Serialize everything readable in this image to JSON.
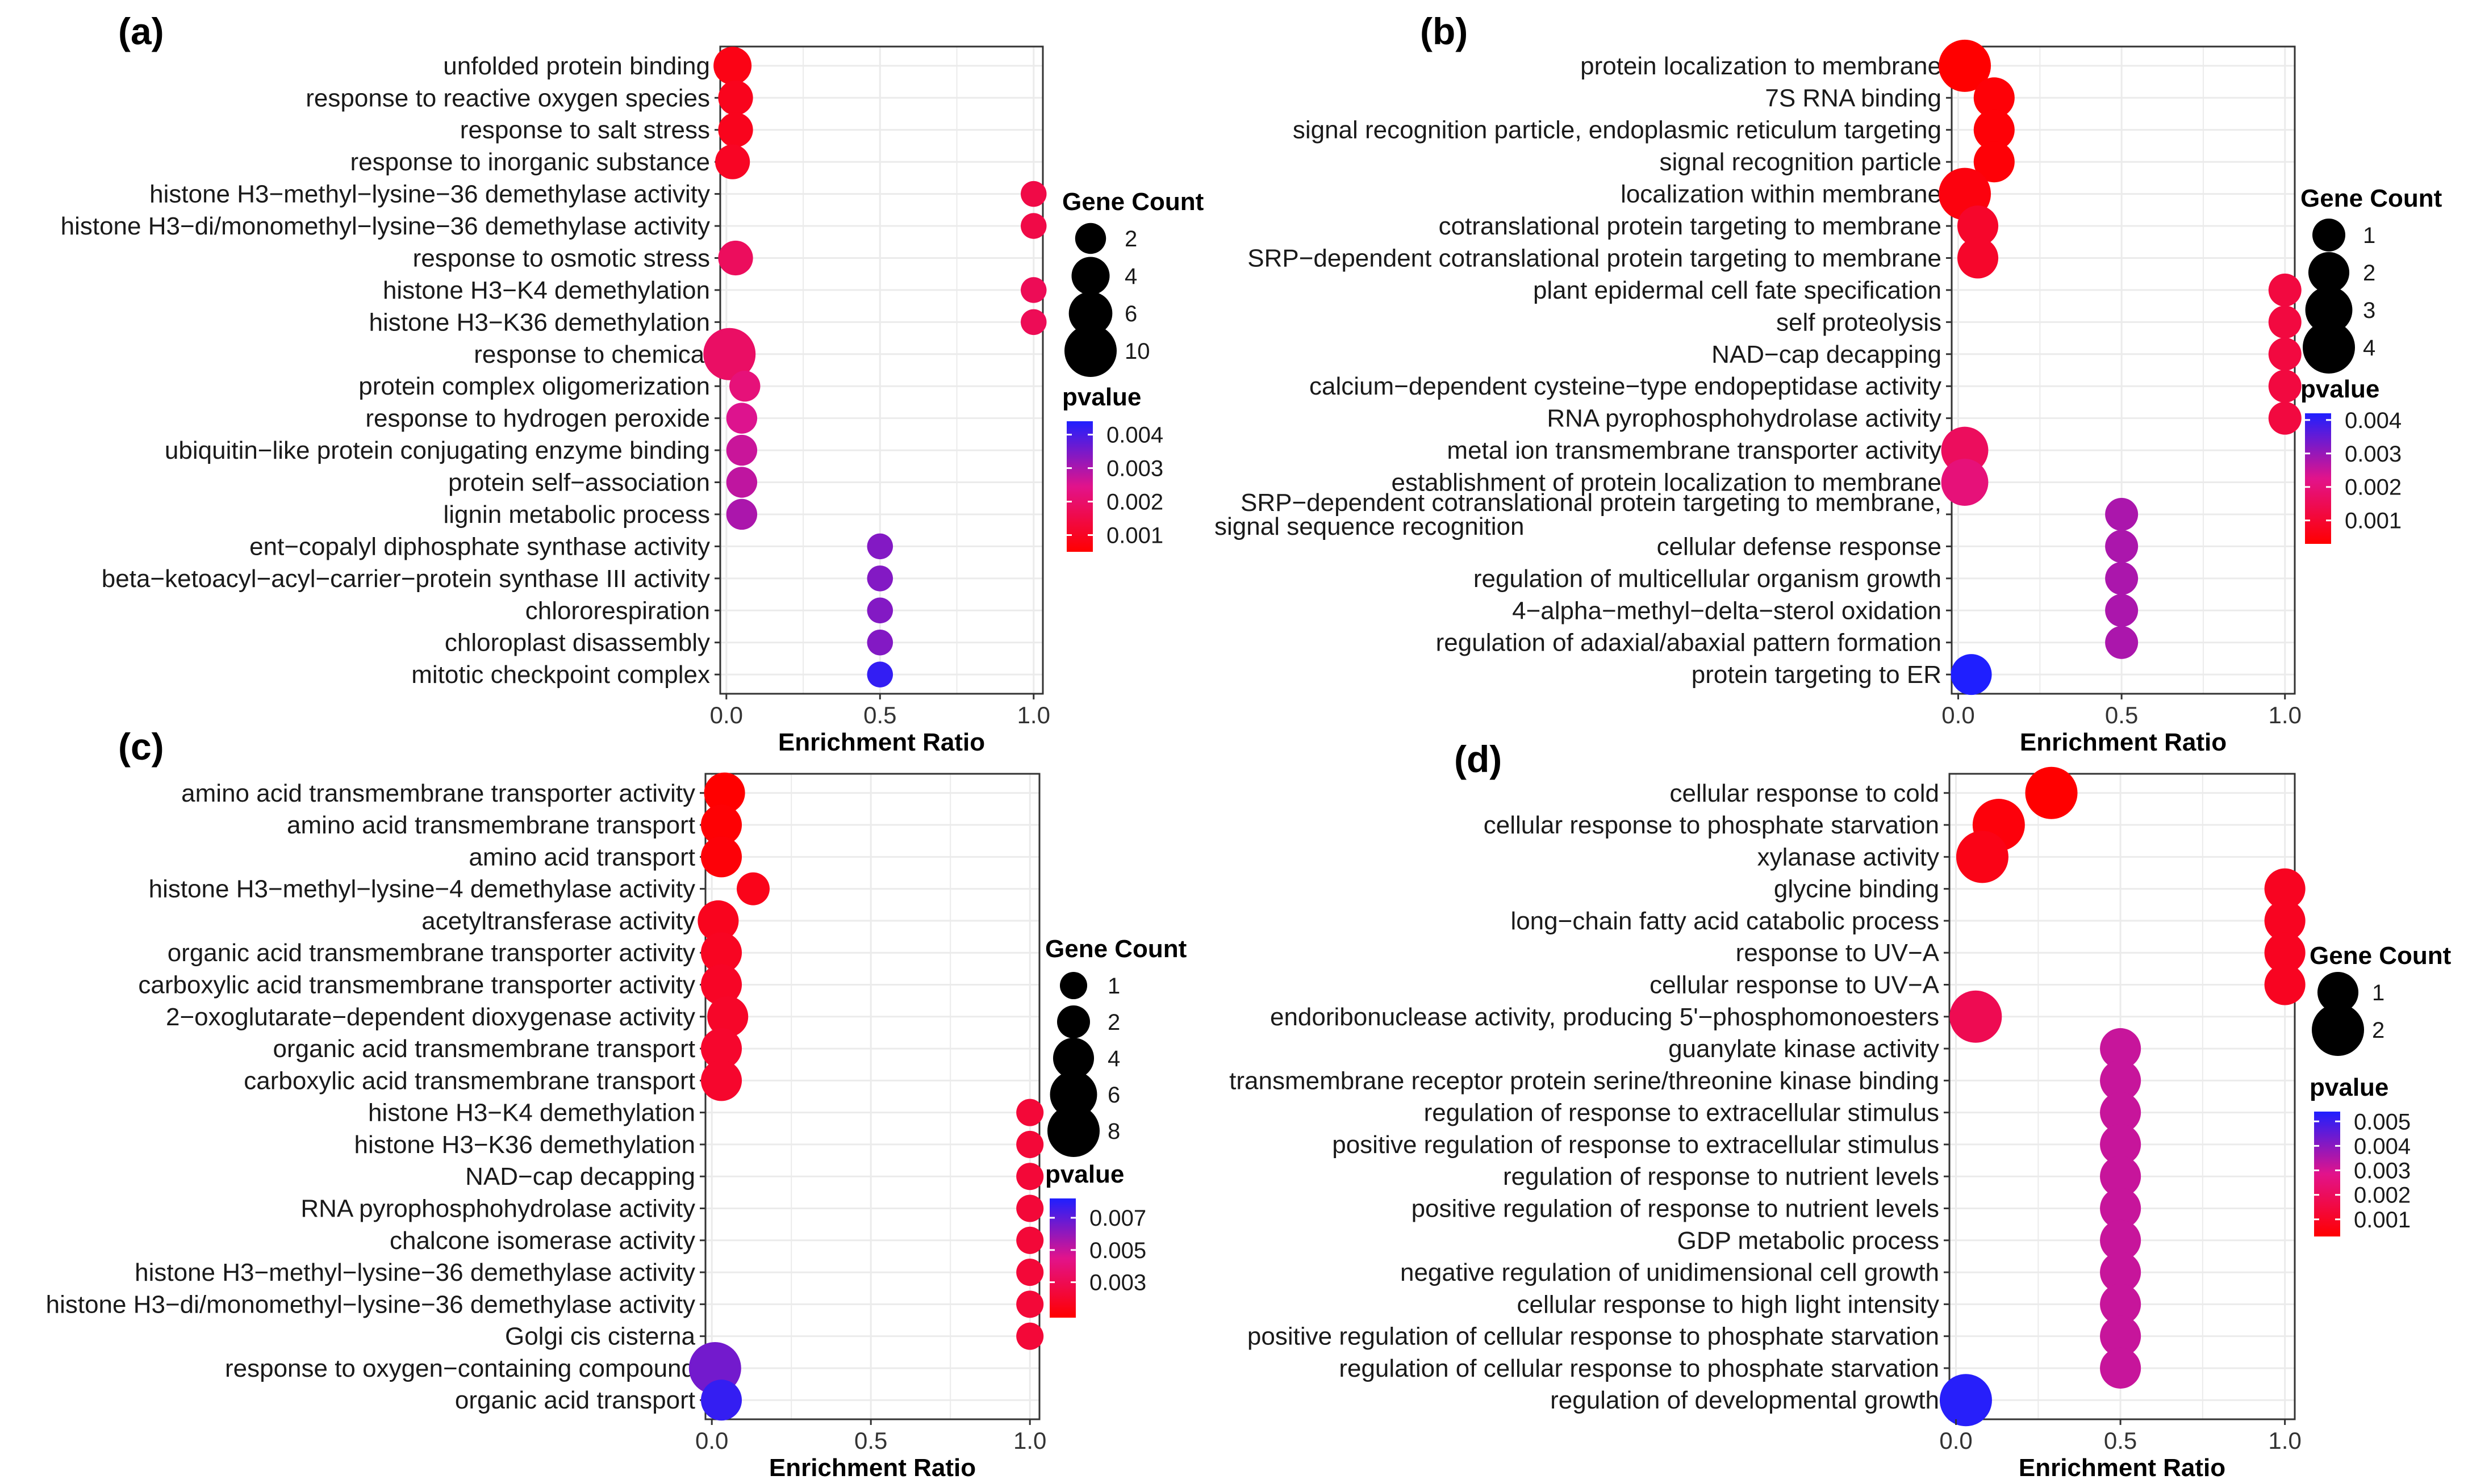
{
  "colors": {
    "low": "#ff0000",
    "mid": "#e2138b",
    "high": "#1f1fff",
    "grid": "#ebebeb",
    "frame": "#333333"
  },
  "legend_titles": {
    "size": "Gene Count",
    "color": "pvalue"
  },
  "chart_data": [
    {
      "type": "scatter",
      "panel": "(a)",
      "xlabel": "Enrichment Ratio",
      "xticks": [
        "0.0",
        "0.5",
        "1.0"
      ],
      "xlim": [
        -0.02,
        1.03
      ],
      "terms": [
        {
          "term": "unfolded protein binding",
          "ratio": 0.02,
          "count": 4,
          "pvalue": 0.0008
        },
        {
          "term": "response to reactive oxygen species",
          "ratio": 0.03,
          "count": 3,
          "pvalue": 0.0009
        },
        {
          "term": "response to salt stress",
          "ratio": 0.03,
          "count": 3,
          "pvalue": 0.0009
        },
        {
          "term": "response to inorganic substance",
          "ratio": 0.02,
          "count": 3,
          "pvalue": 0.001
        },
        {
          "term": "histone H3−methyl−lysine−36 demethylase activity",
          "ratio": 1.0,
          "count": 1,
          "pvalue": 0.0015
        },
        {
          "term": "histone H3−di/monomethyl−lysine−36 demethylase activity",
          "ratio": 1.0,
          "count": 1,
          "pvalue": 0.0015
        },
        {
          "term": "response to osmotic stress",
          "ratio": 0.03,
          "count": 3,
          "pvalue": 0.0018
        },
        {
          "term": "histone H3−K4 demethylation",
          "ratio": 1.0,
          "count": 1,
          "pvalue": 0.0017
        },
        {
          "term": "histone H3−K36 demethylation",
          "ratio": 1.0,
          "count": 1,
          "pvalue": 0.0017
        },
        {
          "term": "response to chemical",
          "ratio": 0.01,
          "count": 10,
          "pvalue": 0.0019
        },
        {
          "term": "protein complex oligomerization",
          "ratio": 0.06,
          "count": 2,
          "pvalue": 0.0022
        },
        {
          "term": "response to hydrogen peroxide",
          "ratio": 0.05,
          "count": 2,
          "pvalue": 0.0025
        },
        {
          "term": "ubiquitin−like protein conjugating enzyme binding",
          "ratio": 0.05,
          "count": 2,
          "pvalue": 0.0027
        },
        {
          "term": "protein self−association",
          "ratio": 0.05,
          "count": 2,
          "pvalue": 0.0028
        },
        {
          "term": "lignin metabolic process",
          "ratio": 0.05,
          "count": 2,
          "pvalue": 0.003
        },
        {
          "term": "ent−copalyl diphosphate synthase activity",
          "ratio": 0.5,
          "count": 1,
          "pvalue": 0.0034
        },
        {
          "term": "beta−ketoacyl−acyl−carrier−protein synthase III activity",
          "ratio": 0.5,
          "count": 1,
          "pvalue": 0.0034
        },
        {
          "term": "chlororespiration",
          "ratio": 0.5,
          "count": 1,
          "pvalue": 0.0034
        },
        {
          "term": "chloroplast disassembly",
          "ratio": 0.5,
          "count": 1,
          "pvalue": 0.0034
        },
        {
          "term": "mitotic checkpoint complex",
          "ratio": 0.5,
          "count": 1,
          "pvalue": 0.0042
        }
      ],
      "size_legend": [
        2,
        4,
        6,
        10
      ],
      "color_legend": {
        "min": 0.0005,
        "max": 0.0044,
        "ticks": [
          0.004,
          0.003,
          0.002,
          0.001
        ],
        "labels": [
          "0.004",
          "0.003",
          "0.002",
          "0.001"
        ]
      }
    },
    {
      "type": "scatter",
      "panel": "(b)",
      "xlabel": "Enrichment Ratio",
      "xticks": [
        "0.0",
        "0.5",
        "1.0"
      ],
      "xlim": [
        -0.02,
        1.03
      ],
      "terms": [
        {
          "term": "protein localization to membrane",
          "ratio": 0.02,
          "count": 4,
          "pvalue": 0.0003
        },
        {
          "term": "7S RNA binding",
          "ratio": 0.11,
          "count": 2,
          "pvalue": 0.0004
        },
        {
          "term": "signal recognition particle, endoplasmic reticulum targeting",
          "ratio": 0.11,
          "count": 2,
          "pvalue": 0.0004
        },
        {
          "term": "signal recognition particle",
          "ratio": 0.11,
          "count": 2,
          "pvalue": 0.0004
        },
        {
          "term": "localization within membrane",
          "ratio": 0.02,
          "count": 4,
          "pvalue": 0.0005
        },
        {
          "term": "cotranslational protein targeting to membrane",
          "ratio": 0.06,
          "count": 2,
          "pvalue": 0.0009
        },
        {
          "term": "SRP−dependent cotranslational protein targeting to membrane",
          "ratio": 0.06,
          "count": 2,
          "pvalue": 0.0009
        },
        {
          "term": "plant epidermal cell fate specification",
          "ratio": 1.0,
          "count": 1,
          "pvalue": 0.0012
        },
        {
          "term": "self proteolysis",
          "ratio": 1.0,
          "count": 1,
          "pvalue": 0.0012
        },
        {
          "term": "NAD−cap decapping",
          "ratio": 1.0,
          "count": 1,
          "pvalue": 0.0012
        },
        {
          "term": "calcium−dependent cysteine−type endopeptidase activity",
          "ratio": 1.0,
          "count": 1,
          "pvalue": 0.0012
        },
        {
          "term": "RNA pyrophosphohydrolase activity",
          "ratio": 1.0,
          "count": 1,
          "pvalue": 0.0012
        },
        {
          "term": "metal ion transmembrane transporter activity",
          "ratio": 0.02,
          "count": 3,
          "pvalue": 0.0016
        },
        {
          "term": "establishment of protein localization to membrane",
          "ratio": 0.02,
          "count": 3,
          "pvalue": 0.002
        },
        {
          "term": "SRP−dependent cotranslational protein targeting to membrane,|signal sequence recognition",
          "ratio": 0.5,
          "count": 1,
          "pvalue": 0.0028
        },
        {
          "term": "cellular defense response",
          "ratio": 0.5,
          "count": 1,
          "pvalue": 0.0028
        },
        {
          "term": "regulation of multicellular organism growth",
          "ratio": 0.5,
          "count": 1,
          "pvalue": 0.0028
        },
        {
          "term": "4−alpha−methyl−delta−sterol oxidation",
          "ratio": 0.5,
          "count": 1,
          "pvalue": 0.0028
        },
        {
          "term": "regulation of adaxial/abaxial pattern formation",
          "ratio": 0.5,
          "count": 1,
          "pvalue": 0.0028
        },
        {
          "term": "protein targeting to ER",
          "ratio": 0.04,
          "count": 2,
          "pvalue": 0.0042
        }
      ],
      "size_legend": [
        1,
        2,
        3,
        4
      ],
      "color_legend": {
        "min": 0.0003,
        "max": 0.0042,
        "ticks": [
          0.004,
          0.003,
          0.002,
          0.001
        ],
        "labels": [
          "0.004",
          "0.003",
          "0.002",
          "0.001"
        ]
      }
    },
    {
      "type": "scatter",
      "panel": "(c)",
      "xlabel": "Enrichment Ratio",
      "xticks": [
        "0.0",
        "0.5",
        "1.0"
      ],
      "xlim": [
        -0.02,
        1.03
      ],
      "terms": [
        {
          "term": "amino acid transmembrane transporter activity",
          "ratio": 0.04,
          "count": 4,
          "pvalue": 0.0008
        },
        {
          "term": "amino acid transmembrane transport",
          "ratio": 0.03,
          "count": 4,
          "pvalue": 0.0009
        },
        {
          "term": "amino acid transport",
          "ratio": 0.03,
          "count": 4,
          "pvalue": 0.001
        },
        {
          "term": "histone H3−methyl−lysine−4 demethylase activity",
          "ratio": 0.13,
          "count": 2,
          "pvalue": 0.0015
        },
        {
          "term": "acetyltransferase activity",
          "ratio": 0.02,
          "count": 4,
          "pvalue": 0.0016
        },
        {
          "term": "organic acid transmembrane transporter activity",
          "ratio": 0.03,
          "count": 4,
          "pvalue": 0.0017
        },
        {
          "term": "carboxylic acid transmembrane transporter activity",
          "ratio": 0.03,
          "count": 4,
          "pvalue": 0.0018
        },
        {
          "term": "2−oxoglutarate−dependent dioxygenase activity",
          "ratio": 0.05,
          "count": 4,
          "pvalue": 0.0019
        },
        {
          "term": "organic acid transmembrane transport",
          "ratio": 0.03,
          "count": 4,
          "pvalue": 0.002
        },
        {
          "term": "carboxylic acid transmembrane transport",
          "ratio": 0.03,
          "count": 4,
          "pvalue": 0.002
        },
        {
          "term": "histone H3−K4 demethylation",
          "ratio": 1.0,
          "count": 1,
          "pvalue": 0.0023
        },
        {
          "term": "histone H3−K36 demethylation",
          "ratio": 1.0,
          "count": 1,
          "pvalue": 0.0023
        },
        {
          "term": "NAD−cap decapping",
          "ratio": 1.0,
          "count": 1,
          "pvalue": 0.0023
        },
        {
          "term": "RNA pyrophosphohydrolase activity",
          "ratio": 1.0,
          "count": 1,
          "pvalue": 0.0023
        },
        {
          "term": "chalcone isomerase activity",
          "ratio": 1.0,
          "count": 1,
          "pvalue": 0.0023
        },
        {
          "term": "histone H3−methyl−lysine−36 demethylase activity",
          "ratio": 1.0,
          "count": 1,
          "pvalue": 0.0023
        },
        {
          "term": "histone H3−di/monomethyl−lysine−36 demethylase activity",
          "ratio": 1.0,
          "count": 1,
          "pvalue": 0.0023
        },
        {
          "term": "Golgi cis cisterna",
          "ratio": 1.0,
          "count": 1,
          "pvalue": 0.0023
        },
        {
          "term": "response to oxygen−containing compound",
          "ratio": 0.01,
          "count": 8,
          "pvalue": 0.0066
        },
        {
          "term": "organic acid transport",
          "ratio": 0.03,
          "count": 4,
          "pvalue": 0.0078
        }
      ],
      "size_legend": [
        1,
        2,
        4,
        6,
        8
      ],
      "color_legend": {
        "min": 0.0008,
        "max": 0.0082,
        "ticks": [
          0.007,
          0.005,
          0.003
        ],
        "labels": [
          "0.007",
          "0.005",
          "0.003"
        ]
      }
    },
    {
      "type": "scatter",
      "panel": "(d)",
      "xlabel": "Enrichment Ratio",
      "xticks": [
        "0.0",
        "0.5",
        "1.0"
      ],
      "xlim": [
        -0.02,
        1.03
      ],
      "terms": [
        {
          "term": "cellular response to cold",
          "ratio": 0.29,
          "count": 2,
          "pvalue": 0.0003
        },
        {
          "term": "cellular response to phosphate starvation",
          "ratio": 0.13,
          "count": 2,
          "pvalue": 0.0005
        },
        {
          "term": "xylanase activity",
          "ratio": 0.08,
          "count": 2,
          "pvalue": 0.0007
        },
        {
          "term": "glycine binding",
          "ratio": 1.0,
          "count": 1,
          "pvalue": 0.0009
        },
        {
          "term": "long−chain fatty acid catabolic process",
          "ratio": 1.0,
          "count": 1,
          "pvalue": 0.0009
        },
        {
          "term": "response to UV−A",
          "ratio": 1.0,
          "count": 1,
          "pvalue": 0.0009
        },
        {
          "term": "cellular response to UV−A",
          "ratio": 1.0,
          "count": 1,
          "pvalue": 0.0009
        },
        {
          "term": "endoribonuclease activity, producing 5'−phosphomonoesters",
          "ratio": 0.06,
          "count": 2,
          "pvalue": 0.0018
        },
        {
          "term": "guanylate kinase activity",
          "ratio": 0.5,
          "count": 1,
          "pvalue": 0.0032
        },
        {
          "term": "transmembrane receptor protein serine/threonine kinase binding",
          "ratio": 0.5,
          "count": 1,
          "pvalue": 0.0032
        },
        {
          "term": "regulation of response to extracellular stimulus",
          "ratio": 0.5,
          "count": 1,
          "pvalue": 0.0032
        },
        {
          "term": "positive regulation of response to extracellular stimulus",
          "ratio": 0.5,
          "count": 1,
          "pvalue": 0.0032
        },
        {
          "term": "regulation of response to nutrient levels",
          "ratio": 0.5,
          "count": 1,
          "pvalue": 0.0032
        },
        {
          "term": "positive regulation of response to nutrient levels",
          "ratio": 0.5,
          "count": 1,
          "pvalue": 0.0032
        },
        {
          "term": "GDP metabolic process",
          "ratio": 0.5,
          "count": 1,
          "pvalue": 0.0032
        },
        {
          "term": "negative regulation of unidimensional cell growth",
          "ratio": 0.5,
          "count": 1,
          "pvalue": 0.0032
        },
        {
          "term": "cellular response to high light intensity",
          "ratio": 0.5,
          "count": 1,
          "pvalue": 0.0032
        },
        {
          "term": "positive regulation of cellular response to phosphate starvation",
          "ratio": 0.5,
          "count": 1,
          "pvalue": 0.0032
        },
        {
          "term": "regulation of cellular response to phosphate starvation",
          "ratio": 0.5,
          "count": 1,
          "pvalue": 0.0032
        },
        {
          "term": "regulation of developmental growth",
          "ratio": 0.03,
          "count": 2,
          "pvalue": 0.0053
        }
      ],
      "size_legend": [
        1,
        2
      ],
      "color_legend": {
        "min": 0.0003,
        "max": 0.0054,
        "ticks": [
          0.005,
          0.004,
          0.003,
          0.002,
          0.001
        ],
        "labels": [
          "0.005",
          "0.004",
          "0.003",
          "0.002",
          "0.001"
        ]
      }
    }
  ]
}
